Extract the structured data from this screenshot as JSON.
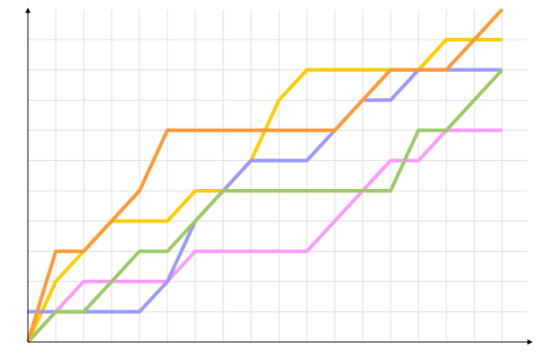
{
  "chart_data": {
    "type": "line",
    "title": "",
    "xlabel": "",
    "ylabel": "",
    "x": [
      0,
      1,
      2,
      3,
      4,
      5,
      6,
      7,
      8,
      9,
      10,
      11,
      12,
      13,
      14,
      15,
      16,
      17
    ],
    "xlim": [
      0,
      18
    ],
    "ylim": [
      0,
      11
    ],
    "grid": true,
    "legend": "none",
    "series": [
      {
        "color": "#ff99ff",
        "values": [
          0,
          1,
          2,
          2,
          2,
          2,
          3,
          3,
          3,
          3,
          3,
          4,
          5,
          6,
          6,
          7,
          7,
          7
        ]
      },
      {
        "color": "#ffcc00",
        "values": [
          0,
          2,
          3,
          4,
          4,
          4,
          5,
          5,
          6,
          8,
          9,
          9,
          9,
          9,
          9,
          10,
          10,
          10
        ]
      },
      {
        "color": "#9999ff",
        "values": [
          1,
          1,
          1,
          1,
          1,
          2,
          4,
          5,
          6,
          6,
          6,
          7,
          8,
          8,
          9,
          9,
          9,
          9
        ]
      },
      {
        "color": "#99cc66",
        "values": [
          0,
          1,
          1,
          2,
          3,
          3,
          4,
          5,
          5,
          5,
          5,
          5,
          5,
          5,
          7,
          7,
          8,
          9
        ]
      },
      {
        "color": "#ff9933",
        "values": [
          0,
          3,
          3,
          4,
          5,
          7,
          7,
          7,
          7,
          7,
          7,
          7,
          8,
          9,
          9,
          9,
          10,
          11
        ]
      }
    ]
  }
}
